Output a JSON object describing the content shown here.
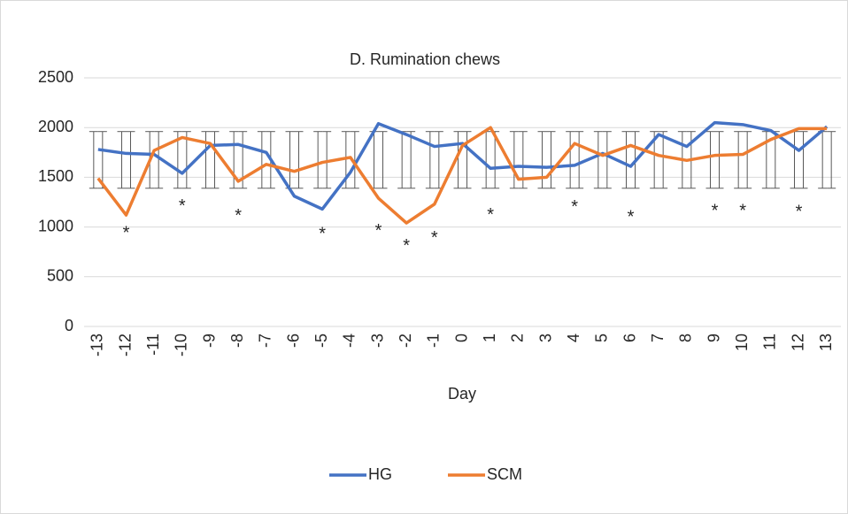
{
  "chart_data": {
    "type": "line",
    "title": "D. Rumination chews",
    "x_label": "Day",
    "categories": [
      "-13",
      "-12",
      "-11",
      "-10",
      "-9",
      "-8",
      "-7",
      "-6",
      "-5",
      "-4",
      "-3",
      "-2",
      "-1",
      "0",
      "1",
      "2",
      "3",
      "4",
      "5",
      "6",
      "7",
      "8",
      "9",
      "10",
      "11",
      "12",
      "13"
    ],
    "series": [
      {
        "name": "HG",
        "color": "#4472c4",
        "values": [
          1780,
          1740,
          1730,
          1540,
          1820,
          1830,
          1750,
          1310,
          1180,
          1550,
          2040,
          1930,
          1810,
          1840,
          1590,
          1610,
          1600,
          1620,
          1740,
          1610,
          1930,
          1810,
          2050,
          2030,
          1970,
          1770,
          2010
        ]
      },
      {
        "name": "SCM",
        "color": "#ed7d31",
        "values": [
          1490,
          1120,
          1770,
          1900,
          1840,
          1460,
          1630,
          1560,
          1650,
          1700,
          1290,
          1040,
          1230,
          1820,
          2000,
          1480,
          1500,
          1840,
          1720,
          1820,
          1720,
          1670,
          1720,
          1730,
          1880,
          1990,
          1990
        ]
      }
    ],
    "error_bars": {
      "center": 1675,
      "error": 285,
      "color": "#595959"
    },
    "annotations": [
      {
        "x": "-12",
        "y": 970,
        "text": "*"
      },
      {
        "x": "-10",
        "y": 1240,
        "text": "*"
      },
      {
        "x": "-8",
        "y": 1140,
        "text": "*"
      },
      {
        "x": "-5",
        "y": 960,
        "text": "*"
      },
      {
        "x": "-3",
        "y": 990,
        "text": "*"
      },
      {
        "x": "-2",
        "y": 840,
        "text": "*"
      },
      {
        "x": "-1",
        "y": 920,
        "text": "*"
      },
      {
        "x": "1",
        "y": 1150,
        "text": "*"
      },
      {
        "x": "4",
        "y": 1230,
        "text": "*"
      },
      {
        "x": "6",
        "y": 1130,
        "text": "*"
      },
      {
        "x": "9",
        "y": 1190,
        "text": "*"
      },
      {
        "x": "10",
        "y": 1190,
        "text": "*"
      },
      {
        "x": "12",
        "y": 1180,
        "text": "*"
      }
    ],
    "ylim": [
      0,
      2500
    ],
    "yticks": [
      0,
      500,
      1000,
      1500,
      2000,
      2500
    ],
    "grid": true,
    "legend": "bottom"
  }
}
